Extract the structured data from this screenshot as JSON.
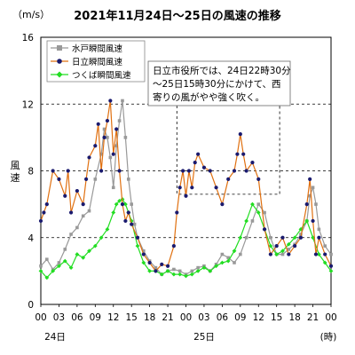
{
  "chart_data": {
    "type": "line",
    "title": "2021年11月24日～25日の風速の推移",
    "unit_label": "（m/s）",
    "ylabel": "風速",
    "ylabel_chars": [
      "風",
      "速"
    ],
    "ylim": [
      0,
      16
    ],
    "yticks": [
      "0",
      "4",
      "8",
      "12",
      "16"
    ],
    "xlim": [
      0,
      48
    ],
    "xticks": [
      "00",
      "03",
      "06",
      "09",
      "12",
      "15",
      "18",
      "21",
      "00",
      "03",
      "06",
      "09",
      "12",
      "15",
      "18",
      "21",
      "00"
    ],
    "date_labels": [
      "24日",
      "25日"
    ],
    "x_unit_label": "(時)",
    "grid": "horizontal dashed at 4, 8, 12",
    "legend_position": "top-left",
    "annotation": {
      "text_lines": [
        "日立市役所では、24日22時30分",
        "～25日15時30分にかけて、西",
        "寄りの風がやや強く吹く。"
      ],
      "span": [
        22.5,
        39.5
      ]
    },
    "series": [
      {
        "name": "水戸瞬間風速",
        "color": "#999999",
        "x": [
          0,
          1,
          2,
          3,
          4,
          5,
          6,
          7,
          8,
          9,
          10,
          10.5,
          11,
          11.5,
          12,
          12.5,
          13,
          13.5,
          14,
          14.5,
          15,
          15.5,
          16,
          17,
          18,
          19,
          20,
          21,
          22,
          23,
          24,
          25,
          26,
          27,
          28,
          29,
          30,
          31,
          32,
          33,
          34,
          35,
          36,
          37,
          38,
          39,
          40,
          41,
          42,
          43,
          44,
          44.5,
          45,
          45.5,
          46,
          47,
          48
        ],
        "y": [
          2.3,
          2.7,
          2.1,
          2.5,
          3.3,
          4.2,
          4.6,
          5.3,
          5.6,
          7.5,
          9.0,
          10.5,
          10.0,
          8.8,
          7.0,
          9.5,
          11.0,
          12.2,
          10.0,
          7.5,
          6.0,
          4.8,
          4.0,
          3.2,
          2.6,
          2.2,
          1.8,
          2.0,
          2.1,
          2.0,
          1.8,
          2.0,
          2.2,
          2.3,
          2.0,
          2.4,
          3.0,
          2.8,
          2.5,
          3.0,
          4.0,
          5.0,
          6.0,
          5.5,
          4.0,
          3.0,
          3.0,
          3.3,
          3.6,
          4.2,
          5.0,
          6.5,
          7.0,
          6.0,
          4.5,
          3.5,
          3.0
        ]
      },
      {
        "name": "日立瞬間風速",
        "color": "#e07010",
        "x": [
          0,
          0.5,
          1,
          2,
          3,
          4,
          4.5,
          5,
          6,
          7,
          7.5,
          8,
          9,
          9.5,
          10,
          10.5,
          11,
          11.5,
          12,
          12.5,
          13,
          13.5,
          14,
          14.5,
          15,
          16,
          17,
          18,
          19,
          20,
          21,
          22,
          22.5,
          23,
          23.5,
          24,
          24.5,
          25,
          25.5,
          26,
          27,
          28,
          29,
          30,
          31,
          32,
          32.5,
          33,
          33.5,
          34,
          35,
          36,
          37,
          38,
          39,
          40,
          41,
          42,
          43,
          44,
          44.5,
          45,
          45.5,
          46,
          47,
          48
        ],
        "y": [
          5.0,
          5.5,
          6.0,
          8.0,
          7.5,
          6.5,
          8.0,
          5.5,
          6.8,
          6.0,
          7.5,
          8.8,
          9.5,
          10.8,
          8.0,
          10.0,
          11.0,
          12.2,
          9.0,
          10.5,
          8.0,
          6.0,
          5.0,
          5.5,
          4.8,
          4.0,
          3.0,
          2.5,
          2.0,
          2.4,
          2.3,
          3.5,
          5.5,
          7.0,
          8.0,
          6.5,
          8.0,
          7.0,
          8.5,
          9.0,
          8.2,
          8.0,
          7.0,
          6.0,
          7.5,
          8.0,
          9.0,
          10.2,
          9.0,
          8.0,
          8.5,
          7.5,
          4.5,
          3.0,
          3.5,
          4.0,
          3.0,
          3.5,
          4.0,
          6.0,
          7.5,
          5.0,
          3.0,
          4.0,
          3.0,
          2.3
        ]
      },
      {
        "name": "つくば瞬間風速",
        "color": "#22dd22",
        "x": [
          0,
          1,
          2,
          3,
          4,
          5,
          6,
          7,
          8,
          9,
          10,
          11,
          12,
          12.5,
          13,
          13.5,
          14,
          14.5,
          15,
          16,
          17,
          18,
          19,
          20,
          21,
          22,
          23,
          24,
          25,
          26,
          27,
          28,
          29,
          30,
          31,
          32,
          33,
          34,
          35,
          36,
          37,
          38,
          39,
          40,
          41,
          42,
          43,
          44,
          45,
          46,
          47,
          48
        ],
        "y": [
          2.0,
          1.6,
          2.0,
          2.3,
          2.6,
          2.2,
          3.0,
          2.8,
          3.2,
          3.5,
          4.0,
          4.5,
          5.5,
          6.0,
          6.2,
          6.3,
          6.0,
          5.5,
          5.0,
          3.5,
          2.5,
          2.0,
          2.0,
          1.8,
          2.0,
          1.8,
          1.8,
          1.7,
          1.8,
          2.0,
          2.2,
          2.0,
          2.3,
          2.5,
          2.6,
          3.2,
          4.0,
          5.0,
          6.0,
          5.5,
          4.5,
          3.5,
          3.0,
          3.2,
          3.6,
          4.0,
          4.5,
          5.0,
          4.0,
          3.0,
          2.5,
          2.0
        ]
      }
    ]
  }
}
